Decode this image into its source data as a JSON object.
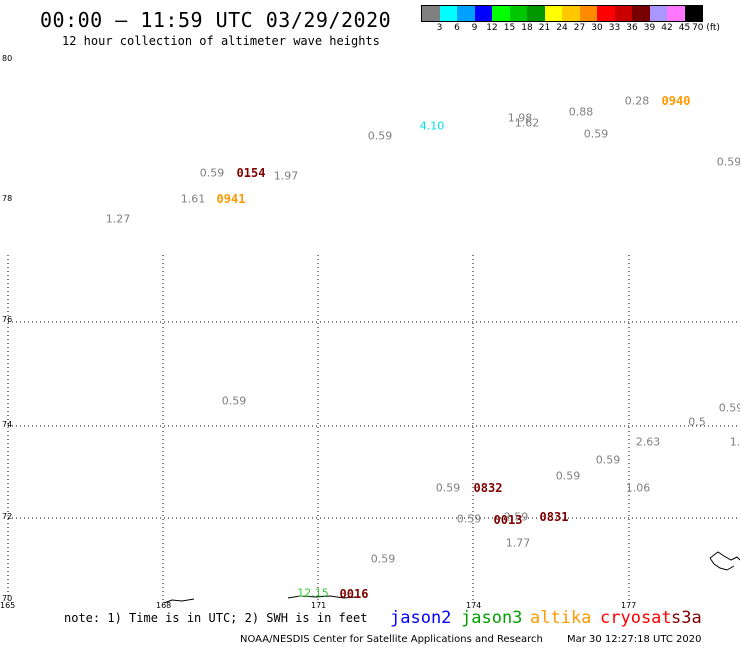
{
  "header": {
    "title": "00:00 – 11:59 UTC 03/29/2020",
    "subtitle": "12 hour collection of altimeter wave heights"
  },
  "colorbar": {
    "colors": [
      "#808080",
      "#00ffff",
      "#00a0ff",
      "#0000ff",
      "#00ff00",
      "#00c800",
      "#009600",
      "#ffff00",
      "#ffc800",
      "#ff8c00",
      "#ff0000",
      "#c80000",
      "#780000",
      "#aa96ff",
      "#ff78ff",
      "#000000"
    ],
    "labels": [
      "3",
      "6",
      "9",
      "12",
      "15",
      "18",
      "21",
      "24",
      "27",
      "30",
      "33",
      "36",
      "39",
      "42",
      "45",
      "70 (ft)"
    ]
  },
  "map": {
    "lat_labels": [
      "80",
      "78",
      "76",
      "74",
      "72",
      "70"
    ],
    "lon_labels": [
      "165",
      "168",
      "171",
      "174",
      "177"
    ],
    "observations": [
      {
        "text": "0.59",
        "color": "#808080"
      },
      {
        "text": "4.10",
        "color": "#00e0e0"
      },
      {
        "text": "1.98",
        "color": "#808080"
      },
      {
        "text": "1.62",
        "color": "#808080"
      },
      {
        "text": "0.88",
        "color": "#808080"
      },
      {
        "text": "0.59",
        "color": "#808080"
      },
      {
        "text": "0.28",
        "color": "#808080"
      },
      {
        "text": "0.59",
        "color": "#808080"
      },
      {
        "text": "0.59",
        "color": "#808080"
      },
      {
        "text": "1.97",
        "color": "#808080"
      },
      {
        "text": "1.61",
        "color": "#808080"
      },
      {
        "text": "1.27",
        "color": "#808080"
      },
      {
        "text": "0.59",
        "color": "#808080"
      },
      {
        "text": "0.59",
        "color": "#808080"
      },
      {
        "text": "0.5",
        "color": "#808080"
      },
      {
        "text": "1.",
        "color": "#808080"
      },
      {
        "text": "2.63",
        "color": "#808080"
      },
      {
        "text": "0.59",
        "color": "#808080"
      },
      {
        "text": "0.59",
        "color": "#808080"
      },
      {
        "text": "1.06",
        "color": "#808080"
      },
      {
        "text": "0.59",
        "color": "#808080"
      },
      {
        "text": "0.59",
        "color": "#808080"
      },
      {
        "text": "2.59",
        "color": "#808080"
      },
      {
        "text": "1.77",
        "color": "#808080"
      },
      {
        "text": "0.59",
        "color": "#808080"
      },
      {
        "text": "12.15",
        "color": "#33cc33"
      }
    ],
    "time_labels": [
      {
        "text": "0940",
        "color": "#ff9900"
      },
      {
        "text": "0154",
        "color": "#800000"
      },
      {
        "text": "0941",
        "color": "#ff9900"
      },
      {
        "text": "0832",
        "color": "#800000"
      },
      {
        "text": "0013",
        "color": "#800000"
      },
      {
        "text": "0831",
        "color": "#800000"
      },
      {
        "text": "0016",
        "color": "#800000"
      }
    ]
  },
  "footer": {
    "note": "note: 1) Time is in UTC; 2) SWH is in feet",
    "satellites": [
      {
        "name": "jason2",
        "color": "#0000ff"
      },
      {
        "name": "jason3",
        "color": "#00a000"
      },
      {
        "name": "altika",
        "color": "#ff9900"
      },
      {
        "name": "cryosat",
        "color": "#ff0000"
      },
      {
        "name": "s3a",
        "color": "#800000"
      }
    ],
    "credit": "NOAA/NESDIS Center for Satellite Applications and Research",
    "timestamp": "Mar 30 12:27:18 UTC 2020"
  }
}
